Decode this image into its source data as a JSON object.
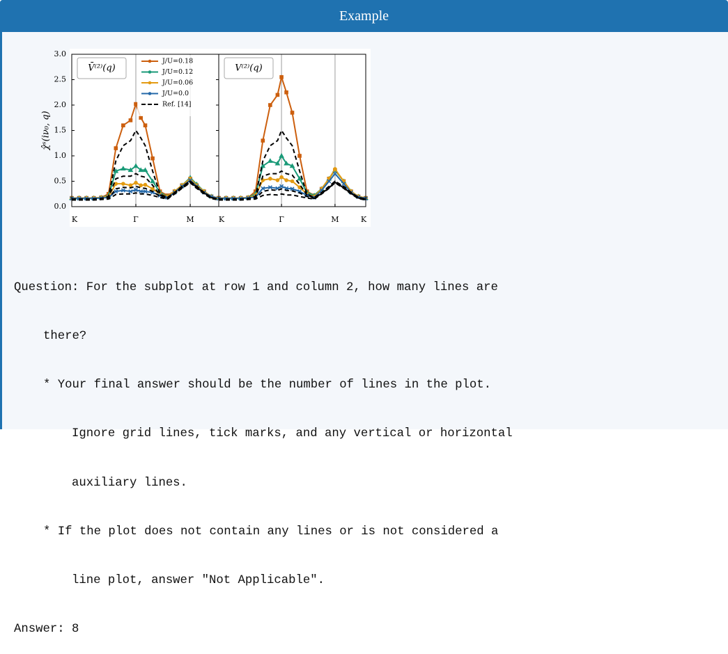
{
  "header": {
    "title": "Example"
  },
  "chart_data": [
    {
      "type": "line",
      "title": "V̄⁽²⁾(q)",
      "ylabel": "χ̂ˢ(iν₀, q)",
      "x": [
        0,
        0.05,
        0.1,
        0.15,
        0.2,
        0.25,
        0.3,
        0.35,
        0.4,
        0.436,
        0.47,
        0.5,
        0.55,
        0.6,
        0.65,
        0.7,
        0.75,
        0.806,
        0.85,
        0.9,
        0.95,
        1
      ],
      "xlim": [
        0,
        1
      ],
      "xticks": [
        {
          "value": 0,
          "label": "K"
        },
        {
          "value": 0.436,
          "label": "Γ"
        },
        {
          "value": 0.806,
          "label": "M"
        }
      ],
      "ylim": [
        0,
        3
      ],
      "yticks": [
        {
          "value": 0,
          "label": "0.0"
        },
        0.5,
        {
          "value": 1,
          "label": "1.0"
        },
        1.5,
        {
          "value": 2,
          "label": "2.0"
        },
        2.5,
        {
          "value": 3,
          "label": "3.0"
        }
      ],
      "legend": true,
      "series": [
        {
          "name": "J/U=0.18",
          "color": "#cc5f0e",
          "marker": "square",
          "values": [
            0.17,
            0.17,
            0.17,
            0.17,
            0.18,
            0.25,
            1.15,
            1.6,
            1.7,
            2.02,
            1.75,
            1.6,
            0.95,
            0.3,
            0.22,
            0.3,
            0.42,
            0.55,
            0.42,
            0.3,
            0.2,
            0.17
          ]
        },
        {
          "name": "J/U=0.12",
          "color": "#1a9a78",
          "marker": "triangle",
          "values": [
            0.17,
            0.17,
            0.17,
            0.17,
            0.18,
            0.22,
            0.7,
            0.75,
            0.72,
            0.8,
            0.72,
            0.72,
            0.5,
            0.28,
            0.2,
            0.3,
            0.42,
            0.57,
            0.44,
            0.3,
            0.2,
            0.17
          ]
        },
        {
          "name": "J/U=0.06",
          "color": "#e39b12",
          "marker": "circle",
          "values": [
            0.17,
            0.17,
            0.17,
            0.17,
            0.18,
            0.2,
            0.45,
            0.45,
            0.42,
            0.47,
            0.42,
            0.43,
            0.35,
            0.25,
            0.2,
            0.3,
            0.42,
            0.55,
            0.42,
            0.3,
            0.2,
            0.17
          ]
        },
        {
          "name": "J/U=0.0",
          "color": "#2468a8",
          "marker": "cross",
          "values": [
            0.16,
            0.16,
            0.16,
            0.16,
            0.17,
            0.18,
            0.3,
            0.32,
            0.3,
            0.33,
            0.3,
            0.3,
            0.28,
            0.22,
            0.18,
            0.28,
            0.4,
            0.52,
            0.4,
            0.28,
            0.2,
            0.16
          ]
        },
        {
          "name": "Ref. [14]",
          "color": "#000000",
          "dash": true,
          "values": [
            0.15,
            0.15,
            0.15,
            0.15,
            0.16,
            0.2,
            0.9,
            1.2,
            1.3,
            1.5,
            1.35,
            1.2,
            0.7,
            0.25,
            0.18,
            0.28,
            0.4,
            0.5,
            0.4,
            0.28,
            0.18,
            0.15
          ]
        },
        {
          "color": "#000000",
          "dash": true,
          "values": [
            0.15,
            0.15,
            0.15,
            0.15,
            0.16,
            0.18,
            0.55,
            0.6,
            0.6,
            0.65,
            0.6,
            0.58,
            0.42,
            0.23,
            0.17,
            0.27,
            0.38,
            0.5,
            0.38,
            0.27,
            0.18,
            0.15
          ]
        },
        {
          "color": "#000000",
          "dash": true,
          "values": [
            0.14,
            0.14,
            0.14,
            0.14,
            0.15,
            0.16,
            0.35,
            0.38,
            0.37,
            0.4,
            0.37,
            0.36,
            0.3,
            0.2,
            0.16,
            0.26,
            0.37,
            0.48,
            0.37,
            0.26,
            0.17,
            0.14
          ]
        },
        {
          "color": "#000000",
          "dash": true,
          "values": [
            0.13,
            0.13,
            0.13,
            0.13,
            0.14,
            0.15,
            0.24,
            0.25,
            0.25,
            0.27,
            0.25,
            0.25,
            0.22,
            0.18,
            0.15,
            0.25,
            0.36,
            0.47,
            0.36,
            0.25,
            0.16,
            0.13
          ]
        }
      ]
    },
    {
      "type": "line",
      "title": "V⁽²⁾(q)",
      "x": [
        0,
        0.05,
        0.1,
        0.15,
        0.2,
        0.25,
        0.3,
        0.35,
        0.4,
        0.427,
        0.46,
        0.5,
        0.55,
        0.6,
        0.65,
        0.7,
        0.75,
        0.791,
        0.85,
        0.9,
        0.95,
        1
      ],
      "xlim": [
        0,
        1
      ],
      "xticks": [
        {
          "value": 0,
          "label": "K"
        },
        {
          "value": 0.427,
          "label": "Γ"
        },
        {
          "value": 0.791,
          "label": "M"
        },
        {
          "value": 1,
          "label": "K"
        }
      ],
      "ylim": [
        0,
        3
      ],
      "series": [
        {
          "name": "J/U=0.18",
          "color": "#cc5f0e",
          "marker": "square",
          "values": [
            0.17,
            0.17,
            0.17,
            0.17,
            0.18,
            0.3,
            1.3,
            2.0,
            2.2,
            2.55,
            2.25,
            1.85,
            1.0,
            0.3,
            0.22,
            0.35,
            0.55,
            0.72,
            0.5,
            0.3,
            0.2,
            0.17
          ]
        },
        {
          "name": "J/U=0.12",
          "color": "#1a9a78",
          "marker": "triangle",
          "values": [
            0.17,
            0.17,
            0.17,
            0.17,
            0.18,
            0.25,
            0.8,
            0.9,
            0.85,
            1.0,
            0.85,
            0.8,
            0.55,
            0.28,
            0.22,
            0.35,
            0.55,
            0.72,
            0.5,
            0.3,
            0.2,
            0.17
          ]
        },
        {
          "name": "J/U=0.06",
          "color": "#e39b12",
          "marker": "circle",
          "values": [
            0.17,
            0.17,
            0.17,
            0.17,
            0.18,
            0.22,
            0.52,
            0.55,
            0.52,
            0.58,
            0.52,
            0.5,
            0.38,
            0.25,
            0.2,
            0.35,
            0.55,
            0.74,
            0.5,
            0.3,
            0.2,
            0.17
          ]
        },
        {
          "name": "J/U=0.0",
          "color": "#2468a8",
          "marker": "cross",
          "values": [
            0.16,
            0.16,
            0.16,
            0.16,
            0.17,
            0.19,
            0.36,
            0.38,
            0.36,
            0.4,
            0.36,
            0.35,
            0.3,
            0.22,
            0.18,
            0.32,
            0.5,
            0.65,
            0.45,
            0.28,
            0.19,
            0.16
          ]
        },
        {
          "color": "#000000",
          "dash": true,
          "values": [
            0.15,
            0.15,
            0.15,
            0.15,
            0.16,
            0.2,
            0.9,
            1.2,
            1.3,
            1.5,
            1.35,
            1.2,
            0.7,
            0.25,
            0.18,
            0.28,
            0.4,
            0.5,
            0.4,
            0.28,
            0.18,
            0.15
          ]
        },
        {
          "color": "#000000",
          "dash": true,
          "values": [
            0.15,
            0.15,
            0.15,
            0.15,
            0.16,
            0.18,
            0.6,
            0.65,
            0.65,
            0.7,
            0.65,
            0.62,
            0.44,
            0.23,
            0.17,
            0.27,
            0.38,
            0.5,
            0.38,
            0.27,
            0.18,
            0.15
          ]
        },
        {
          "color": "#000000",
          "dash": true,
          "values": [
            0.14,
            0.14,
            0.14,
            0.14,
            0.15,
            0.16,
            0.3,
            0.33,
            0.32,
            0.35,
            0.32,
            0.31,
            0.27,
            0.2,
            0.16,
            0.26,
            0.37,
            0.48,
            0.37,
            0.26,
            0.17,
            0.14
          ]
        },
        {
          "color": "#000000",
          "dash": true,
          "values": [
            0.13,
            0.13,
            0.13,
            0.13,
            0.14,
            0.15,
            0.22,
            0.24,
            0.23,
            0.25,
            0.23,
            0.23,
            0.2,
            0.17,
            0.15,
            0.25,
            0.36,
            0.47,
            0.36,
            0.25,
            0.16,
            0.13
          ]
        }
      ]
    }
  ],
  "document": {
    "lines": [
      "Question: For the subplot at row 1 and column 2, how many lines are",
      "there?",
      "* Your final answer should be the number of lines in the plot.",
      "Ignore grid lines, tick marks, and any vertical or horizontal",
      "auxiliary lines.",
      "* If the plot does not contain any lines or is not considered a",
      "line plot, answer \"Not Applicable\".",
      "Answer: 8"
    ]
  }
}
